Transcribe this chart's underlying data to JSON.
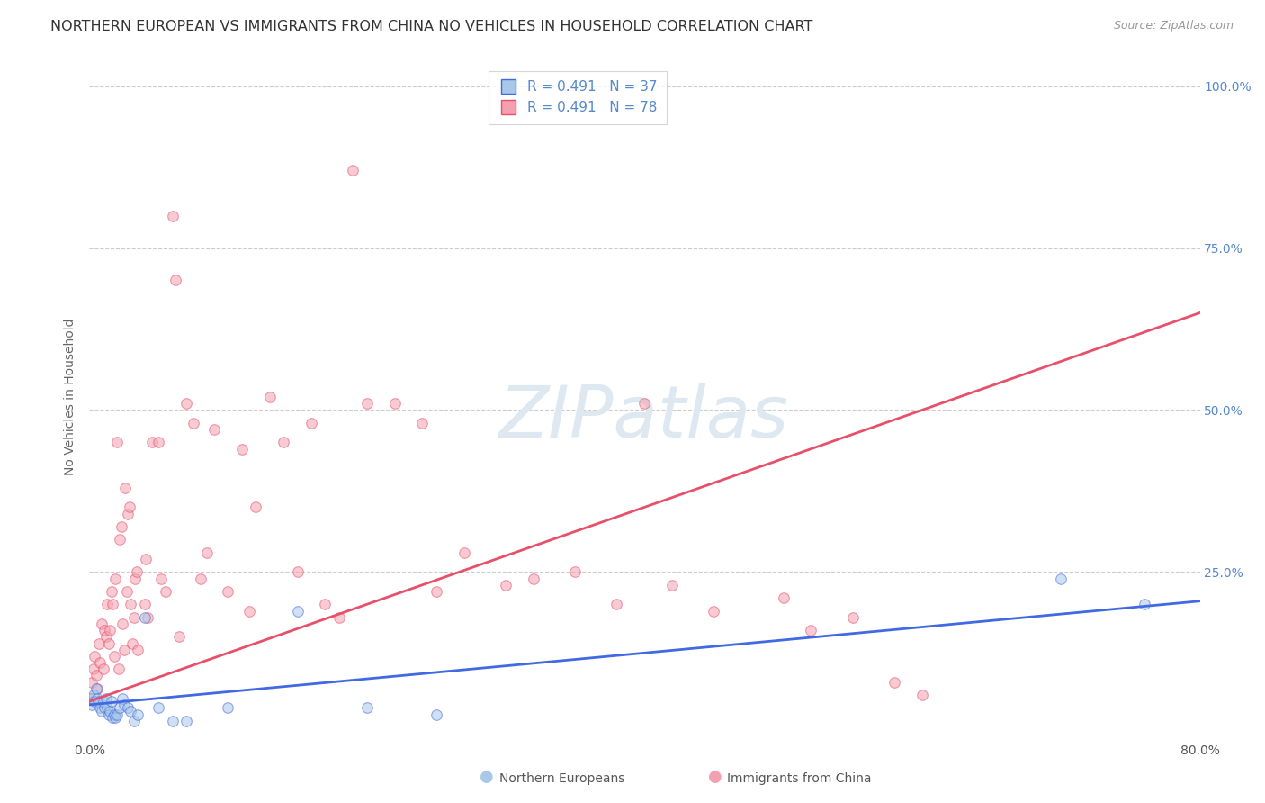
{
  "title": "NORTHERN EUROPEAN VS IMMIGRANTS FROM CHINA NO VEHICLES IN HOUSEHOLD CORRELATION CHART",
  "source": "Source: ZipAtlas.com",
  "ylabel": "No Vehicles in Household",
  "right_yticks": [
    0.25,
    0.5,
    0.75,
    1.0
  ],
  "right_yticklabels": [
    "25.0%",
    "50.0%",
    "75.0%",
    "100.0%"
  ],
  "xlim": [
    0.0,
    0.8
  ],
  "ylim": [
    -0.01,
    1.05
  ],
  "legend_entries": [
    {
      "label_r": "R = 0.491",
      "label_n": "N = 37",
      "color": "#7bafd4",
      "line_color": "#4169e1"
    },
    {
      "label_r": "R = 0.491",
      "label_n": "N = 78",
      "color": "#f48090",
      "line_color": "#e8506a"
    }
  ],
  "blue_scatter": [
    [
      0.001,
      0.055
    ],
    [
      0.002,
      0.045
    ],
    [
      0.003,
      0.06
    ],
    [
      0.004,
      0.05
    ],
    [
      0.005,
      0.07
    ],
    [
      0.006,
      0.055
    ],
    [
      0.007,
      0.05
    ],
    [
      0.008,
      0.04
    ],
    [
      0.009,
      0.035
    ],
    [
      0.01,
      0.05
    ],
    [
      0.011,
      0.04
    ],
    [
      0.012,
      0.055
    ],
    [
      0.013,
      0.04
    ],
    [
      0.014,
      0.03
    ],
    [
      0.015,
      0.035
    ],
    [
      0.016,
      0.05
    ],
    [
      0.017,
      0.025
    ],
    [
      0.018,
      0.03
    ],
    [
      0.019,
      0.025
    ],
    [
      0.02,
      0.03
    ],
    [
      0.022,
      0.04
    ],
    [
      0.024,
      0.055
    ],
    [
      0.025,
      0.045
    ],
    [
      0.028,
      0.04
    ],
    [
      0.03,
      0.035
    ],
    [
      0.032,
      0.02
    ],
    [
      0.035,
      0.03
    ],
    [
      0.04,
      0.18
    ],
    [
      0.05,
      0.04
    ],
    [
      0.06,
      0.02
    ],
    [
      0.07,
      0.02
    ],
    [
      0.1,
      0.04
    ],
    [
      0.15,
      0.19
    ],
    [
      0.2,
      0.04
    ],
    [
      0.25,
      0.03
    ],
    [
      0.7,
      0.24
    ],
    [
      0.76,
      0.2
    ]
  ],
  "pink_scatter": [
    [
      0.001,
      0.055
    ],
    [
      0.002,
      0.08
    ],
    [
      0.003,
      0.1
    ],
    [
      0.004,
      0.12
    ],
    [
      0.005,
      0.09
    ],
    [
      0.006,
      0.07
    ],
    [
      0.007,
      0.14
    ],
    [
      0.008,
      0.11
    ],
    [
      0.009,
      0.17
    ],
    [
      0.01,
      0.1
    ],
    [
      0.011,
      0.16
    ],
    [
      0.012,
      0.15
    ],
    [
      0.013,
      0.2
    ],
    [
      0.014,
      0.14
    ],
    [
      0.015,
      0.16
    ],
    [
      0.016,
      0.22
    ],
    [
      0.017,
      0.2
    ],
    [
      0.018,
      0.12
    ],
    [
      0.019,
      0.24
    ],
    [
      0.02,
      0.45
    ],
    [
      0.021,
      0.1
    ],
    [
      0.022,
      0.3
    ],
    [
      0.023,
      0.32
    ],
    [
      0.024,
      0.17
    ],
    [
      0.025,
      0.13
    ],
    [
      0.026,
      0.38
    ],
    [
      0.027,
      0.22
    ],
    [
      0.028,
      0.34
    ],
    [
      0.029,
      0.35
    ],
    [
      0.03,
      0.2
    ],
    [
      0.031,
      0.14
    ],
    [
      0.032,
      0.18
    ],
    [
      0.033,
      0.24
    ],
    [
      0.034,
      0.25
    ],
    [
      0.035,
      0.13
    ],
    [
      0.04,
      0.2
    ],
    [
      0.041,
      0.27
    ],
    [
      0.042,
      0.18
    ],
    [
      0.045,
      0.45
    ],
    [
      0.05,
      0.45
    ],
    [
      0.052,
      0.24
    ],
    [
      0.055,
      0.22
    ],
    [
      0.06,
      0.8
    ],
    [
      0.062,
      0.7
    ],
    [
      0.065,
      0.15
    ],
    [
      0.07,
      0.51
    ],
    [
      0.075,
      0.48
    ],
    [
      0.08,
      0.24
    ],
    [
      0.085,
      0.28
    ],
    [
      0.09,
      0.47
    ],
    [
      0.1,
      0.22
    ],
    [
      0.11,
      0.44
    ],
    [
      0.115,
      0.19
    ],
    [
      0.12,
      0.35
    ],
    [
      0.13,
      0.52
    ],
    [
      0.14,
      0.45
    ],
    [
      0.15,
      0.25
    ],
    [
      0.16,
      0.48
    ],
    [
      0.17,
      0.2
    ],
    [
      0.18,
      0.18
    ],
    [
      0.19,
      0.87
    ],
    [
      0.2,
      0.51
    ],
    [
      0.22,
      0.51
    ],
    [
      0.24,
      0.48
    ],
    [
      0.25,
      0.22
    ],
    [
      0.27,
      0.28
    ],
    [
      0.3,
      0.23
    ],
    [
      0.32,
      0.24
    ],
    [
      0.35,
      0.25
    ],
    [
      0.38,
      0.2
    ],
    [
      0.4,
      0.51
    ],
    [
      0.42,
      0.23
    ],
    [
      0.45,
      0.19
    ],
    [
      0.5,
      0.21
    ],
    [
      0.52,
      0.16
    ],
    [
      0.55,
      0.18
    ],
    [
      0.58,
      0.08
    ],
    [
      0.6,
      0.06
    ]
  ],
  "blue_line_x": [
    0.0,
    0.8
  ],
  "blue_line_y": [
    0.045,
    0.205
  ],
  "pink_line_x": [
    0.0,
    0.8
  ],
  "pink_line_y": [
    0.05,
    0.65
  ],
  "blue_color": "#a8c8e8",
  "pink_color": "#f4a0b0",
  "blue_line_color": "#4169e1",
  "pink_line_color": "#e8506a",
  "scatter_size": 70,
  "scatter_alpha": 0.55,
  "background_color": "#ffffff",
  "grid_color": "#cccccc",
  "watermark_text": "ZIPatlas",
  "watermark_color": "#dde8f0",
  "title_fontsize": 11.5,
  "source_fontsize": 9,
  "tick_color": "#5588cc"
}
